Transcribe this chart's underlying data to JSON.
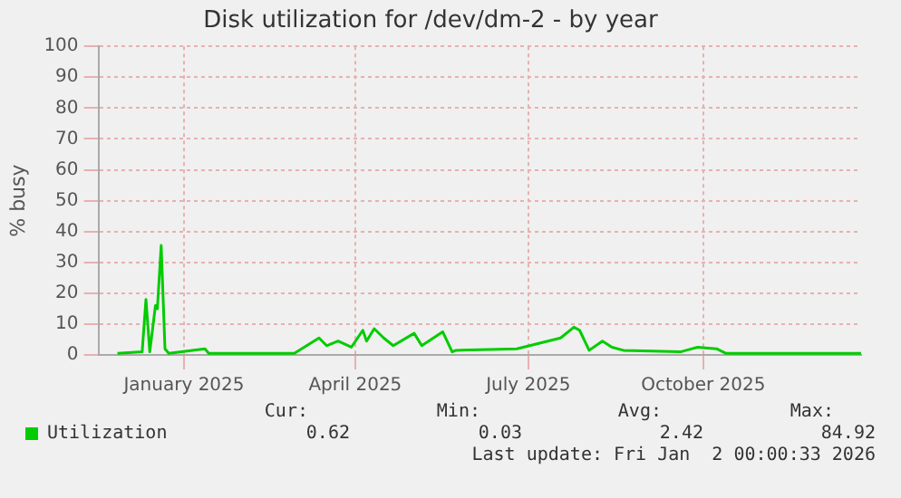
{
  "chart_data": {
    "type": "line",
    "title": "Disk utilization for /dev/dm-2 - by year",
    "ylabel": "% busy",
    "x": [
      "2024-11-27",
      "2024-12-10",
      "2024-12-12",
      "2024-12-14",
      "2024-12-17",
      "2024-12-18",
      "2024-12-20",
      "2024-12-22",
      "2024-12-24",
      "2025-01-12",
      "2025-01-14",
      "2025-02-28",
      "2025-03-13",
      "2025-03-17",
      "2025-03-23",
      "2025-03-30",
      "2025-04-05",
      "2025-04-07",
      "2025-04-11",
      "2025-04-16",
      "2025-04-21",
      "2025-05-02",
      "2025-05-06",
      "2025-05-17",
      "2025-05-22",
      "2025-05-24",
      "2025-06-25",
      "2025-07-18",
      "2025-07-25",
      "2025-07-28",
      "2025-08-02",
      "2025-08-09",
      "2025-08-14",
      "2025-08-20",
      "2025-09-19",
      "2025-09-28",
      "2025-10-08",
      "2025-10-13",
      "2025-12-23"
    ],
    "series": [
      {
        "name": "Utilization",
        "color": "#00cc00",
        "values": [
          0.5,
          1,
          18,
          1,
          16,
          15,
          35.5,
          2,
          0.5,
          2,
          0.5,
          0.5,
          5.5,
          3,
          4.5,
          2.5,
          8,
          4.5,
          8.5,
          5.5,
          3,
          7,
          3,
          7.5,
          1,
          1.5,
          2,
          5.5,
          9,
          8,
          1.5,
          4.5,
          2.5,
          1.5,
          1,
          2.5,
          2,
          0.5,
          0.5
        ]
      }
    ],
    "xlim": [
      "2024-11-17",
      "2025-12-23"
    ],
    "xticks": [
      {
        "value": "2025-01-01",
        "label": "January 2025"
      },
      {
        "value": "2025-04-01",
        "label": "April 2025"
      },
      {
        "value": "2025-07-01",
        "label": "July 2025"
      },
      {
        "value": "2025-10-01",
        "label": "October 2025"
      }
    ],
    "ylim": [
      0,
      100
    ],
    "yticks": [
      0,
      10,
      20,
      30,
      40,
      50,
      60,
      70,
      80,
      90,
      100
    ],
    "grid": true,
    "legend": "bottom",
    "marker": "none",
    "line_style": "solid",
    "annotations": [
      "Cur:",
      "Min:",
      "Avg:",
      "Max:",
      "0.62",
      "0.03",
      "2.42",
      "84.92",
      "Last update: Fri Jan  2 00:00:33 2026"
    ]
  }
}
